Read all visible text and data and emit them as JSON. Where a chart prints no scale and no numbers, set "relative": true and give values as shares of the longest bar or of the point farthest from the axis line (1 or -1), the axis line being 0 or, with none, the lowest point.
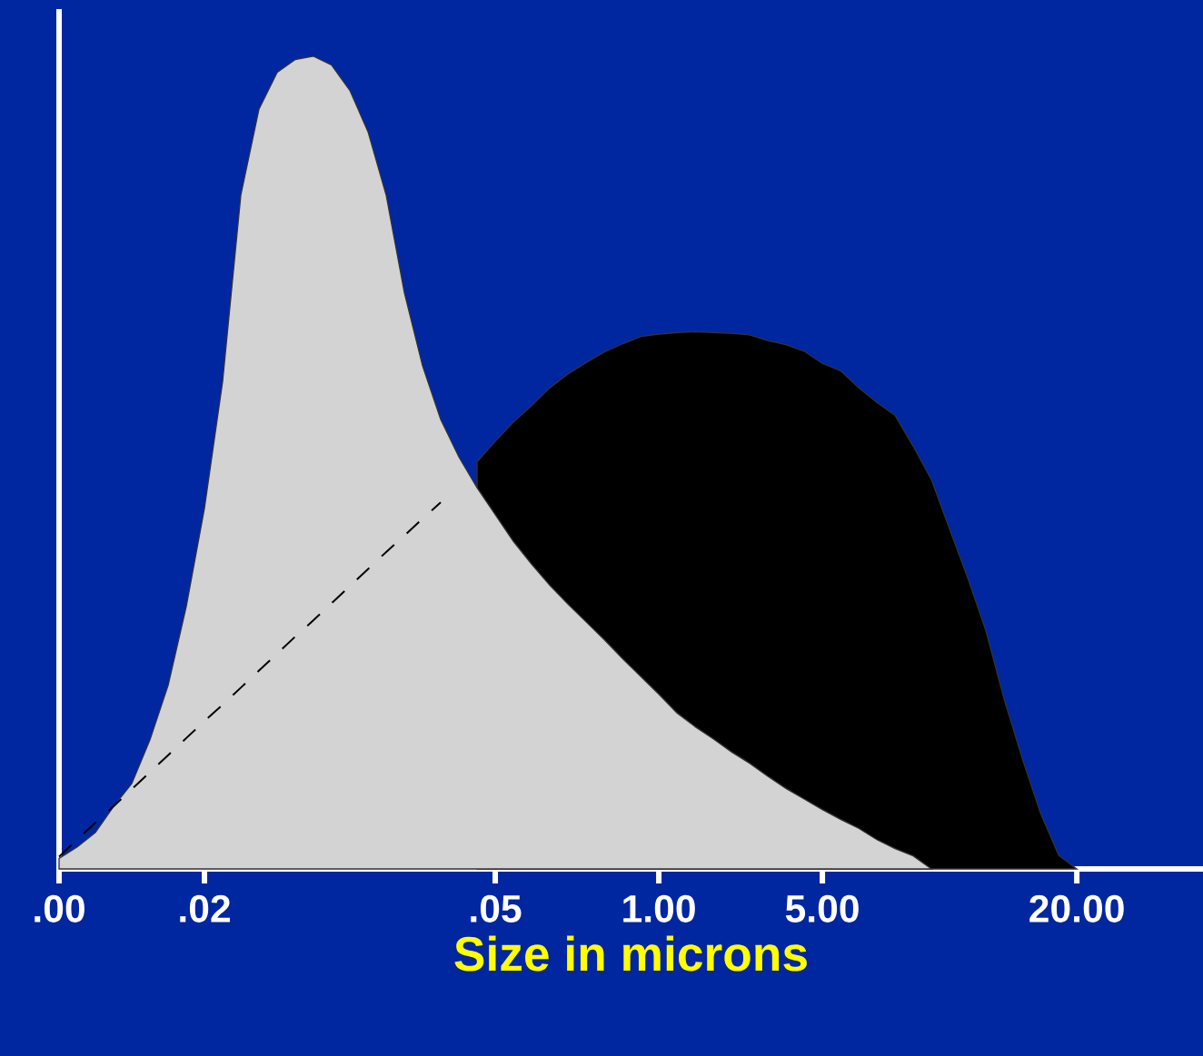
{
  "chart_data": {
    "type": "area",
    "xlabel": "Size in microns",
    "relative": true,
    "categories": [
      ".00",
      null,
      null,
      null,
      null,
      null,
      null,
      null,
      ".02",
      null,
      null,
      null,
      null,
      null,
      null,
      null,
      null,
      null,
      null,
      null,
      null,
      null,
      null,
      null,
      ".05",
      null,
      null,
      null,
      null,
      null,
      null,
      null,
      null,
      "1.00",
      null,
      null,
      null,
      null,
      null,
      null,
      null,
      null,
      "5.00",
      null,
      null,
      null,
      null,
      null,
      null,
      null,
      null,
      null,
      null,
      null,
      null,
      null,
      "20.00"
    ],
    "series": [
      {
        "color": "#000000",
        "values": [
          null,
          null,
          null,
          null,
          null,
          null,
          null,
          null,
          null,
          null,
          null,
          null,
          null,
          null,
          null,
          null,
          null,
          null,
          null,
          null,
          null,
          null,
          null,
          0.501,
          0.526,
          0.55,
          0.57,
          0.592,
          0.609,
          0.623,
          0.636,
          0.646,
          0.655,
          0.658,
          0.66,
          0.661,
          0.66,
          0.659,
          0.657,
          0.65,
          0.645,
          0.637,
          0.622,
          0.613,
          0.592,
          0.574,
          0.558,
          0.52,
          0.479,
          0.418,
          0.358,
          0.293,
          0.209,
          0.136,
          0.069,
          0.017,
          0
        ]
      },
      {
        "color": "#d3d3d3",
        "values": [
          0.013,
          0.027,
          0.045,
          0.077,
          0.105,
          0.159,
          0.226,
          0.323,
          0.444,
          0.6,
          0.829,
          0.935,
          0.98,
          0.996,
          1,
          0.989,
          0.958,
          0.907,
          0.829,
          0.709,
          0.619,
          0.553,
          0.507,
          0.469,
          0.436,
          0.403,
          0.375,
          0.349,
          0.326,
          0.304,
          0.282,
          0.259,
          0.237,
          0.215,
          0.192,
          0.175,
          0.16,
          0.144,
          0.13,
          0.114,
          0.099,
          0.086,
          0.073,
          0.061,
          0.05,
          0.036,
          0.025,
          0.016,
          0,
          null,
          null,
          null,
          null,
          null,
          null,
          null,
          null
        ]
      },
      {
        "type": "line",
        "color": "#000000",
        "line_style": "dashed",
        "values": [
          0.015,
          0.036,
          0.057,
          0.077,
          0.098,
          0.119,
          0.14,
          0.161,
          0.182,
          0.202,
          0.223,
          0.244,
          0.265,
          0.286,
          0.306,
          0.327,
          0.348,
          0.369,
          0.39,
          0.41,
          0.431,
          0.451,
          null,
          null,
          null,
          null,
          null,
          null,
          null,
          null,
          null,
          null,
          null,
          null,
          null,
          null,
          null,
          null,
          null,
          null,
          null,
          null,
          null,
          null,
          null,
          null,
          null,
          null,
          null,
          null,
          null,
          null,
          null,
          null,
          null,
          null,
          null
        ]
      }
    ]
  }
}
